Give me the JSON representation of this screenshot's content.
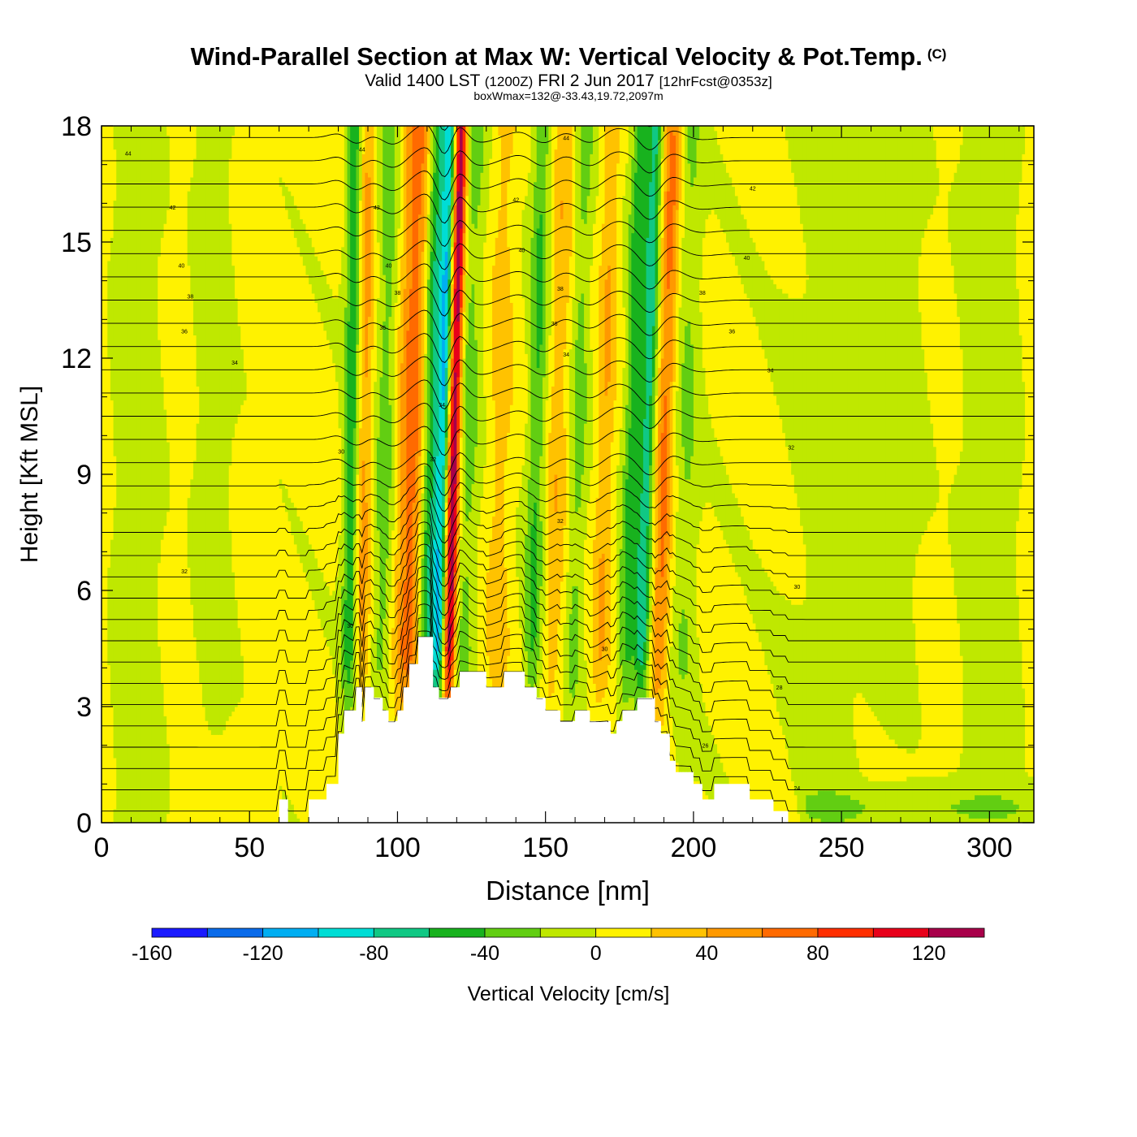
{
  "header": {
    "title": "Wind-Parallel Section at Max W: Vertical Velocity & Pot.Temp.",
    "copyright": "(C)",
    "valid_prefix": "Valid 1400 LST",
    "valid_utc": "(1200Z)",
    "valid_date": "FRI 2 Jun 2017",
    "forecast": "[12hrFcst@0353z]",
    "boxwmax": "boxWmax=132@-33.43,19.72,2097m"
  },
  "chart_data": {
    "type": "heatmap",
    "xlabel": "Distance [nm]",
    "ylabel": "Height [Kft MSL]",
    "xlim": [
      0,
      315
    ],
    "ylim": [
      0,
      18
    ],
    "x_ticks": [
      0,
      50,
      100,
      150,
      200,
      250,
      300
    ],
    "y_ticks": [
      0,
      3,
      6,
      9,
      12,
      15,
      18
    ],
    "colorbar": {
      "label": "Vertical Velocity [cm/s]",
      "boundaries": [
        -160,
        -140,
        -120,
        -100,
        -80,
        -60,
        -40,
        -20,
        0,
        20,
        40,
        60,
        80,
        100,
        120,
        140
      ],
      "tick_labels": [
        "-160",
        "-120",
        "-80",
        "-40",
        "0",
        "40",
        "80",
        "120"
      ],
      "colors": [
        "#1a1aff",
        "#0a6bea",
        "#00aef2",
        "#00ddd5",
        "#10c884",
        "#18b21e",
        "#62ce12",
        "#bfe800",
        "#fff200",
        "#ffc200",
        "#ff9900",
        "#ff6a00",
        "#ff2e00",
        "#e8001a",
        "#a8004a"
      ]
    },
    "velocity_features": [
      {
        "x": 84,
        "w": 2.6,
        "v": -60,
        "tilt": 0.15
      },
      {
        "x": 88,
        "w": 2.8,
        "v": 45,
        "tilt": 0.15
      },
      {
        "x": 95,
        "w": 3.5,
        "v": -35,
        "tilt": 0.25
      },
      {
        "x": 104,
        "w": 5.0,
        "v": 65,
        "tilt": 0.25
      },
      {
        "x": 110,
        "w": 3.0,
        "v": -70,
        "tilt": 0.3
      },
      {
        "x": 114,
        "w": 2.2,
        "v": -95,
        "tilt": 0.3
      },
      {
        "x": 118,
        "w": 2.0,
        "v": 132,
        "tilt": 0.3
      },
      {
        "x": 123,
        "w": 3.5,
        "v": -30,
        "tilt": 0.3
      },
      {
        "x": 134,
        "w": 4.0,
        "v": 25,
        "tilt": 0.2
      },
      {
        "x": 146,
        "w": 3.0,
        "v": -45,
        "tilt": 0.25
      },
      {
        "x": 153,
        "w": 3.5,
        "v": 30,
        "tilt": 0.3
      },
      {
        "x": 160,
        "w": 3.0,
        "v": -30,
        "tilt": 0.3
      },
      {
        "x": 169,
        "w": 3.0,
        "v": 35,
        "tilt": 0.3
      },
      {
        "x": 178,
        "w": 2.8,
        "v": -55,
        "tilt": 0.35
      },
      {
        "x": 183,
        "w": 2.5,
        "v": -75,
        "tilt": 0.35
      },
      {
        "x": 189,
        "w": 3.0,
        "v": 60,
        "tilt": 0.35
      },
      {
        "x": 197,
        "w": 4.0,
        "v": -25,
        "tilt": 0.2
      }
    ],
    "terrain_profile": [
      [
        60,
        0
      ],
      [
        60,
        0.6
      ],
      [
        63,
        0.6
      ],
      [
        63,
        0
      ],
      [
        70,
        0
      ],
      [
        70,
        0.6
      ],
      [
        76,
        0.6
      ],
      [
        76,
        1.0
      ],
      [
        80,
        1.0
      ],
      [
        80,
        2.3
      ],
      [
        82,
        2.3
      ],
      [
        82,
        2.9
      ],
      [
        86,
        2.9
      ],
      [
        86,
        3.5
      ],
      [
        88,
        3.5
      ],
      [
        88,
        2.6
      ],
      [
        89,
        2.6
      ],
      [
        89,
        3.5
      ],
      [
        92,
        3.5
      ],
      [
        92,
        3.2
      ],
      [
        95,
        3.2
      ],
      [
        95,
        2.9
      ],
      [
        97,
        2.9
      ],
      [
        97,
        2.6
      ],
      [
        100,
        2.6
      ],
      [
        100,
        2.9
      ],
      [
        102,
        2.9
      ],
      [
        102,
        3.5
      ],
      [
        104,
        3.5
      ],
      [
        104,
        4.1
      ],
      [
        107,
        4.1
      ],
      [
        107,
        4.8
      ],
      [
        112,
        4.8
      ],
      [
        112,
        3.5
      ],
      [
        114,
        3.5
      ],
      [
        114,
        3.2
      ],
      [
        118,
        3.2
      ],
      [
        118,
        3.5
      ],
      [
        121,
        3.5
      ],
      [
        121,
        3.9
      ],
      [
        130,
        3.9
      ],
      [
        130,
        3.5
      ],
      [
        136,
        3.5
      ],
      [
        136,
        3.9
      ],
      [
        143,
        3.9
      ],
      [
        143,
        3.5
      ],
      [
        147,
        3.5
      ],
      [
        147,
        3.2
      ],
      [
        150,
        3.2
      ],
      [
        150,
        2.9
      ],
      [
        155,
        2.9
      ],
      [
        155,
        2.6
      ],
      [
        160,
        2.6
      ],
      [
        160,
        2.9
      ],
      [
        165,
        2.9
      ],
      [
        165,
        2.6
      ],
      [
        172,
        2.6
      ],
      [
        172,
        2.3
      ],
      [
        174,
        2.3
      ],
      [
        174,
        2.6
      ],
      [
        176,
        2.6
      ],
      [
        176,
        2.9
      ],
      [
        181,
        2.9
      ],
      [
        181,
        3.2
      ],
      [
        187,
        3.2
      ],
      [
        187,
        2.6
      ],
      [
        189,
        2.6
      ],
      [
        189,
        2.3
      ],
      [
        192,
        2.3
      ],
      [
        192,
        1.6
      ],
      [
        194,
        1.6
      ],
      [
        194,
        1.3
      ],
      [
        200,
        1.3
      ],
      [
        200,
        1.0
      ],
      [
        203,
        1.0
      ],
      [
        203,
        0.6
      ],
      [
        207,
        0.6
      ],
      [
        207,
        1.0
      ],
      [
        219,
        1.0
      ],
      [
        219,
        0.6
      ],
      [
        227,
        0.6
      ],
      [
        227,
        0.3
      ],
      [
        232,
        0.3
      ],
      [
        232,
        0
      ],
      [
        236,
        0
      ]
    ],
    "isentrope_labels": [
      {
        "x": 9,
        "y": 17.3,
        "text": "44"
      },
      {
        "x": 24,
        "y": 15.9,
        "text": "42"
      },
      {
        "x": 27,
        "y": 14.4,
        "text": "40"
      },
      {
        "x": 30,
        "y": 13.6,
        "text": "38"
      },
      {
        "x": 28,
        "y": 12.7,
        "text": "36"
      },
      {
        "x": 45,
        "y": 11.9,
        "text": "34"
      },
      {
        "x": 28,
        "y": 6.5,
        "text": "32"
      },
      {
        "x": 88,
        "y": 17.4,
        "text": "44"
      },
      {
        "x": 93,
        "y": 15.9,
        "text": "42"
      },
      {
        "x": 97,
        "y": 14.4,
        "text": "40"
      },
      {
        "x": 100,
        "y": 13.7,
        "text": "38"
      },
      {
        "x": 95,
        "y": 12.8,
        "text": "36"
      },
      {
        "x": 115,
        "y": 10.8,
        "text": "34"
      },
      {
        "x": 112,
        "y": 9.4,
        "text": "32"
      },
      {
        "x": 84,
        "y": 5.1,
        "text": "30"
      },
      {
        "x": 81,
        "y": 9.6,
        "text": "30"
      },
      {
        "x": 157,
        "y": 17.7,
        "text": "44"
      },
      {
        "x": 140,
        "y": 16.1,
        "text": "42"
      },
      {
        "x": 142,
        "y": 14.8,
        "text": "40"
      },
      {
        "x": 155,
        "y": 13.8,
        "text": "38"
      },
      {
        "x": 153,
        "y": 12.9,
        "text": "36"
      },
      {
        "x": 157,
        "y": 12.1,
        "text": "34"
      },
      {
        "x": 155,
        "y": 7.8,
        "text": "32"
      },
      {
        "x": 170,
        "y": 4.5,
        "text": "30"
      },
      {
        "x": 220,
        "y": 16.4,
        "text": "42"
      },
      {
        "x": 218,
        "y": 14.6,
        "text": "40"
      },
      {
        "x": 203,
        "y": 13.7,
        "text": "38"
      },
      {
        "x": 213,
        "y": 12.7,
        "text": "36"
      },
      {
        "x": 226,
        "y": 11.7,
        "text": "34"
      },
      {
        "x": 233,
        "y": 9.7,
        "text": "32"
      },
      {
        "x": 235,
        "y": 6.1,
        "text": "30"
      },
      {
        "x": 229,
        "y": 3.5,
        "text": "28"
      },
      {
        "x": 204,
        "y": 2.0,
        "text": "26"
      },
      {
        "x": 235,
        "y": 0.9,
        "text": "24"
      }
    ]
  }
}
